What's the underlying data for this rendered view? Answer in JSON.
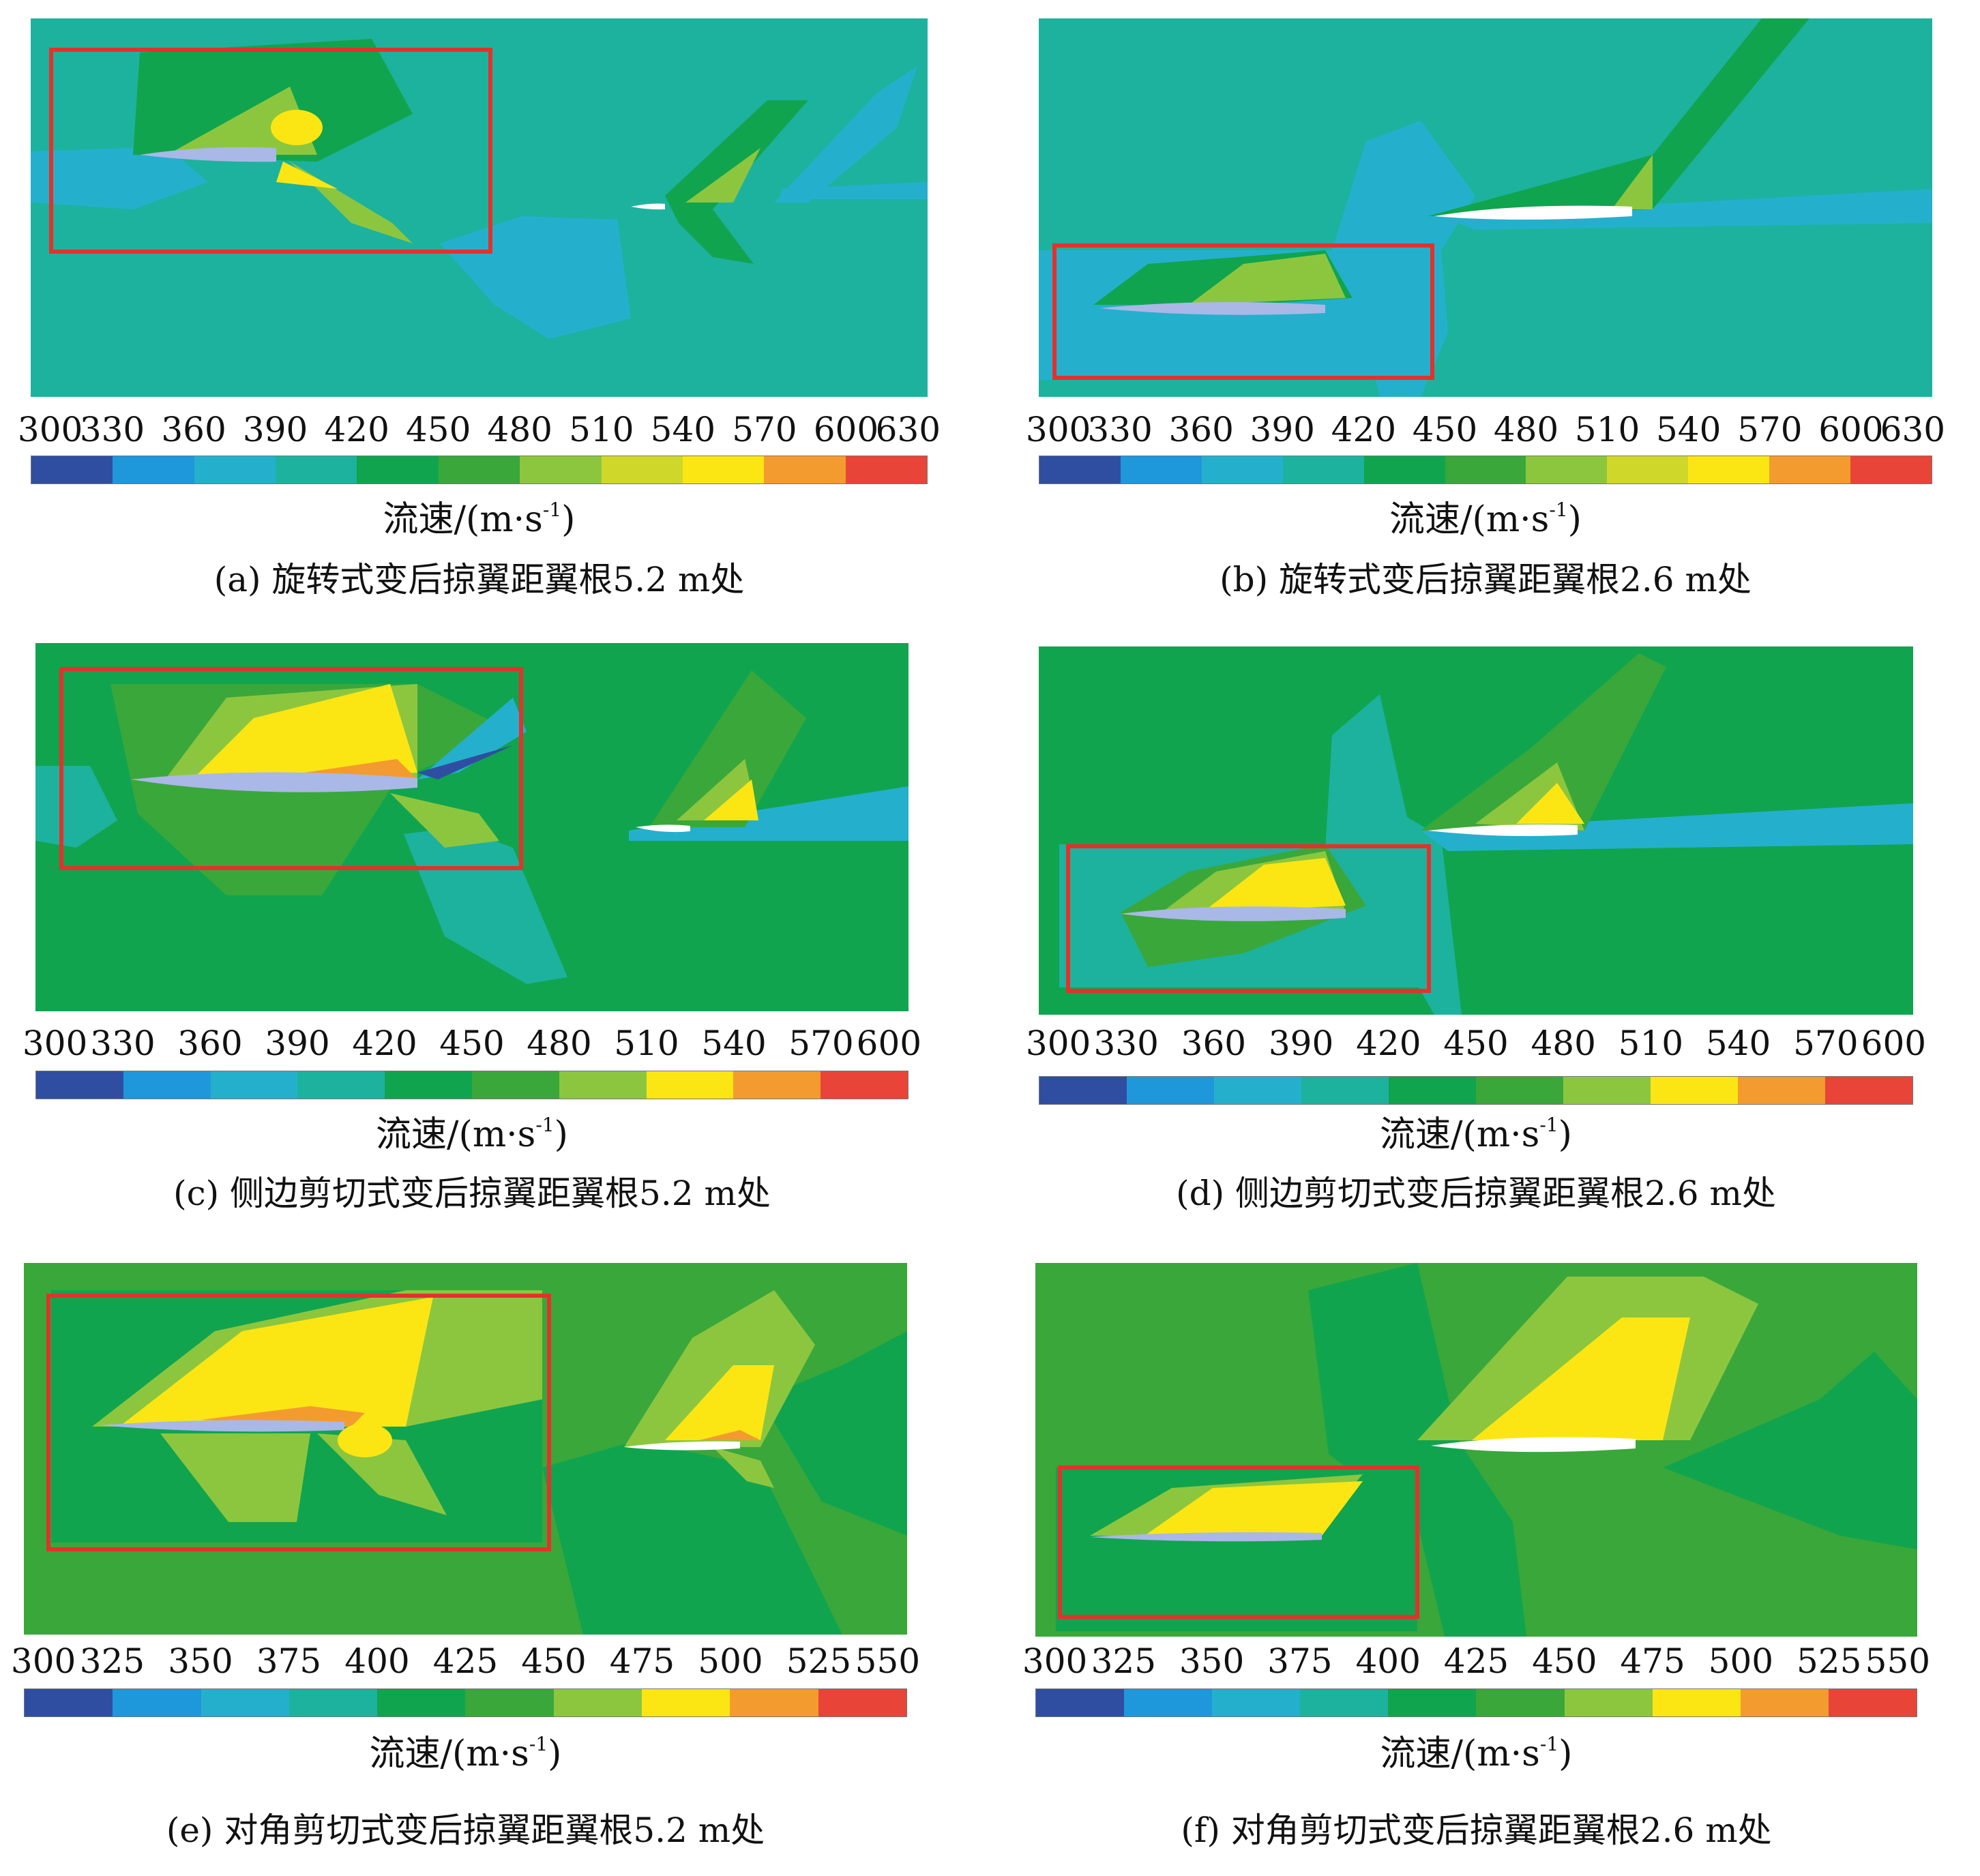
{
  "colors": [
    "#2f4ea1",
    "#1f97db",
    "#24b0cd",
    "#1db29e",
    "#10a44f",
    "#3aa73a",
    "#8cc63f",
    "#cfd82a",
    "#fbe614",
    "#f39b2f",
    "#e84438"
  ],
  "colors_10": [
    "#2f4ea1",
    "#1f97db",
    "#24b0cd",
    "#1db29e",
    "#10a44f",
    "#3aa73a",
    "#8cc63f",
    "#fbe614",
    "#f39b2f",
    "#e84438"
  ],
  "unit_label": {
    "main": "流速/(m·s",
    "exp": "-1",
    "close": ")"
  },
  "panels": [
    {
      "id": "a",
      "caption": "(a) 旋转式变后掠翼距翼根5.2 m处",
      "ticks": [
        "300",
        "330",
        "360",
        "390",
        "420",
        "450",
        "480",
        "510",
        "540",
        "570",
        "600",
        "630"
      ],
      "palette": "colors",
      "background": "#1db29e"
    },
    {
      "id": "b",
      "caption": "(b) 旋转式变后掠翼距翼根2.6 m处",
      "ticks": [
        "300",
        "330",
        "360",
        "390",
        "420",
        "450",
        "480",
        "510",
        "540",
        "570",
        "600",
        "630"
      ],
      "palette": "colors",
      "background": "#1db29e"
    },
    {
      "id": "c",
      "caption": "(c) 侧边剪切式变后掠翼距翼根5.2 m处",
      "ticks": [
        "300",
        "330",
        "360",
        "390",
        "420",
        "450",
        "480",
        "510",
        "540",
        "570",
        "600"
      ],
      "palette": "colors_10",
      "background": "#10a44f"
    },
    {
      "id": "d",
      "caption": "(d) 侧边剪切式变后掠翼距翼根2.6 m处",
      "ticks": [
        "300",
        "330",
        "360",
        "390",
        "420",
        "450",
        "480",
        "510",
        "540",
        "570",
        "600"
      ],
      "palette": "colors_10",
      "background": "#10a44f"
    },
    {
      "id": "e",
      "caption": "(e) 对角剪切式变后掠翼距翼根5.2 m处",
      "ticks": [
        "300",
        "325",
        "350",
        "375",
        "400",
        "425",
        "450",
        "475",
        "500",
        "525",
        "550"
      ],
      "palette": "colors_10",
      "background": "#3aa73a"
    },
    {
      "id": "f",
      "caption": "(f) 对角剪切式变后掠翼距翼根2.6 m处",
      "ticks": [
        "300",
        "325",
        "350",
        "375",
        "400",
        "425",
        "450",
        "475",
        "500",
        "525",
        "550"
      ],
      "palette": "colors_10",
      "background": "#3aa73a"
    }
  ]
}
